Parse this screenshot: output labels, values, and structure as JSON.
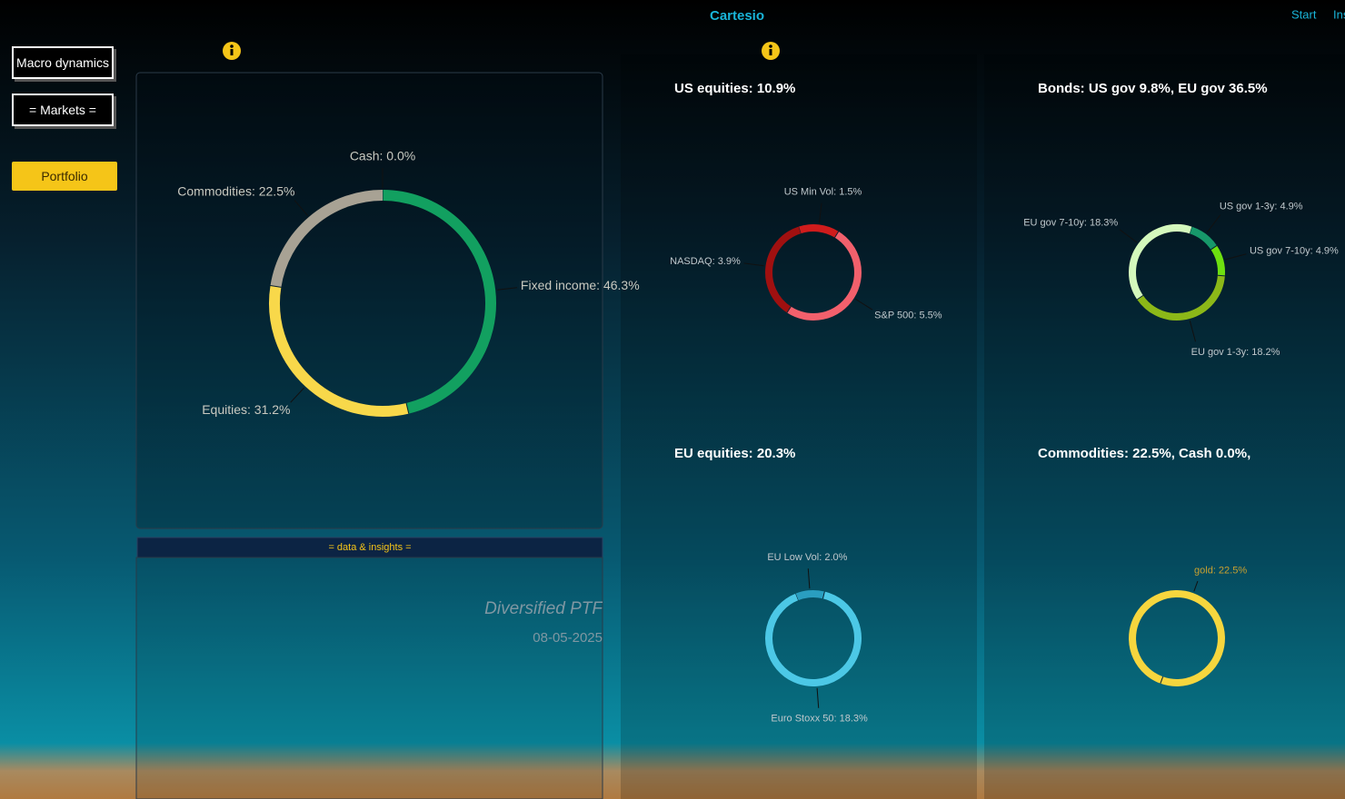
{
  "header": {
    "brand": "Cartesio",
    "nav": [
      "Start",
      "Ins"
    ]
  },
  "sidebar": {
    "buttons": [
      "Macro dynamics",
      "= Markets =",
      "Portfolio"
    ]
  },
  "insights": {
    "tab": "= data & insights =",
    "portfolio_name": "Diversified PTF",
    "date": "08-05-2025"
  },
  "chart_data": [
    {
      "type": "pie",
      "values": [
        46.3,
        31.2,
        22.5,
        0.0
      ],
      "value_labels": [
        "Fixed income: 46.3%",
        "Equities: 31.2%",
        "Commodities: 22.5%",
        "Cash: 0.0%"
      ],
      "colors": [
        "#12a060",
        "#f8d84a",
        "#a8a294",
        "#cccccc"
      ]
    },
    {
      "type": "pie",
      "title": "US equities: 10.9%",
      "values": [
        1.5,
        5.5,
        3.9
      ],
      "value_labels": [
        "US Min Vol: 1.5%",
        "S&P 500: 5.5%",
        "NASDAQ: 3.9%"
      ],
      "colors": [
        "#d01c1c",
        "#f2606c",
        "#a01010"
      ]
    },
    {
      "type": "pie",
      "title": "Bonds: US gov 9.8%, EU gov 36.5%",
      "values": [
        4.9,
        4.9,
        18.2,
        18.3
      ],
      "value_labels": [
        "US gov 1-3y: 4.9%",
        "US gov 7-10y: 4.9%",
        "EU gov 1-3y: 18.2%",
        "EU gov 7-10y: 18.3%"
      ],
      "colors": [
        "#17986a",
        "#6ee010",
        "#8cb818",
        "#d4f8bc"
      ]
    },
    {
      "type": "pie",
      "title": "EU equities: 20.3%",
      "values": [
        2.0,
        18.3
      ],
      "value_labels": [
        "EU Low Vol: 2.0%",
        "Euro Stoxx 50: 18.3%"
      ],
      "colors": [
        "#2a9ec0",
        "#4cc8e6"
      ]
    },
    {
      "type": "pie",
      "title": "Commodities: 22.5%, Cash 0.0%,",
      "values": [
        22.5
      ],
      "value_labels": [
        "gold: 22.5%"
      ],
      "colors": [
        "#f6d63e"
      ]
    }
  ]
}
